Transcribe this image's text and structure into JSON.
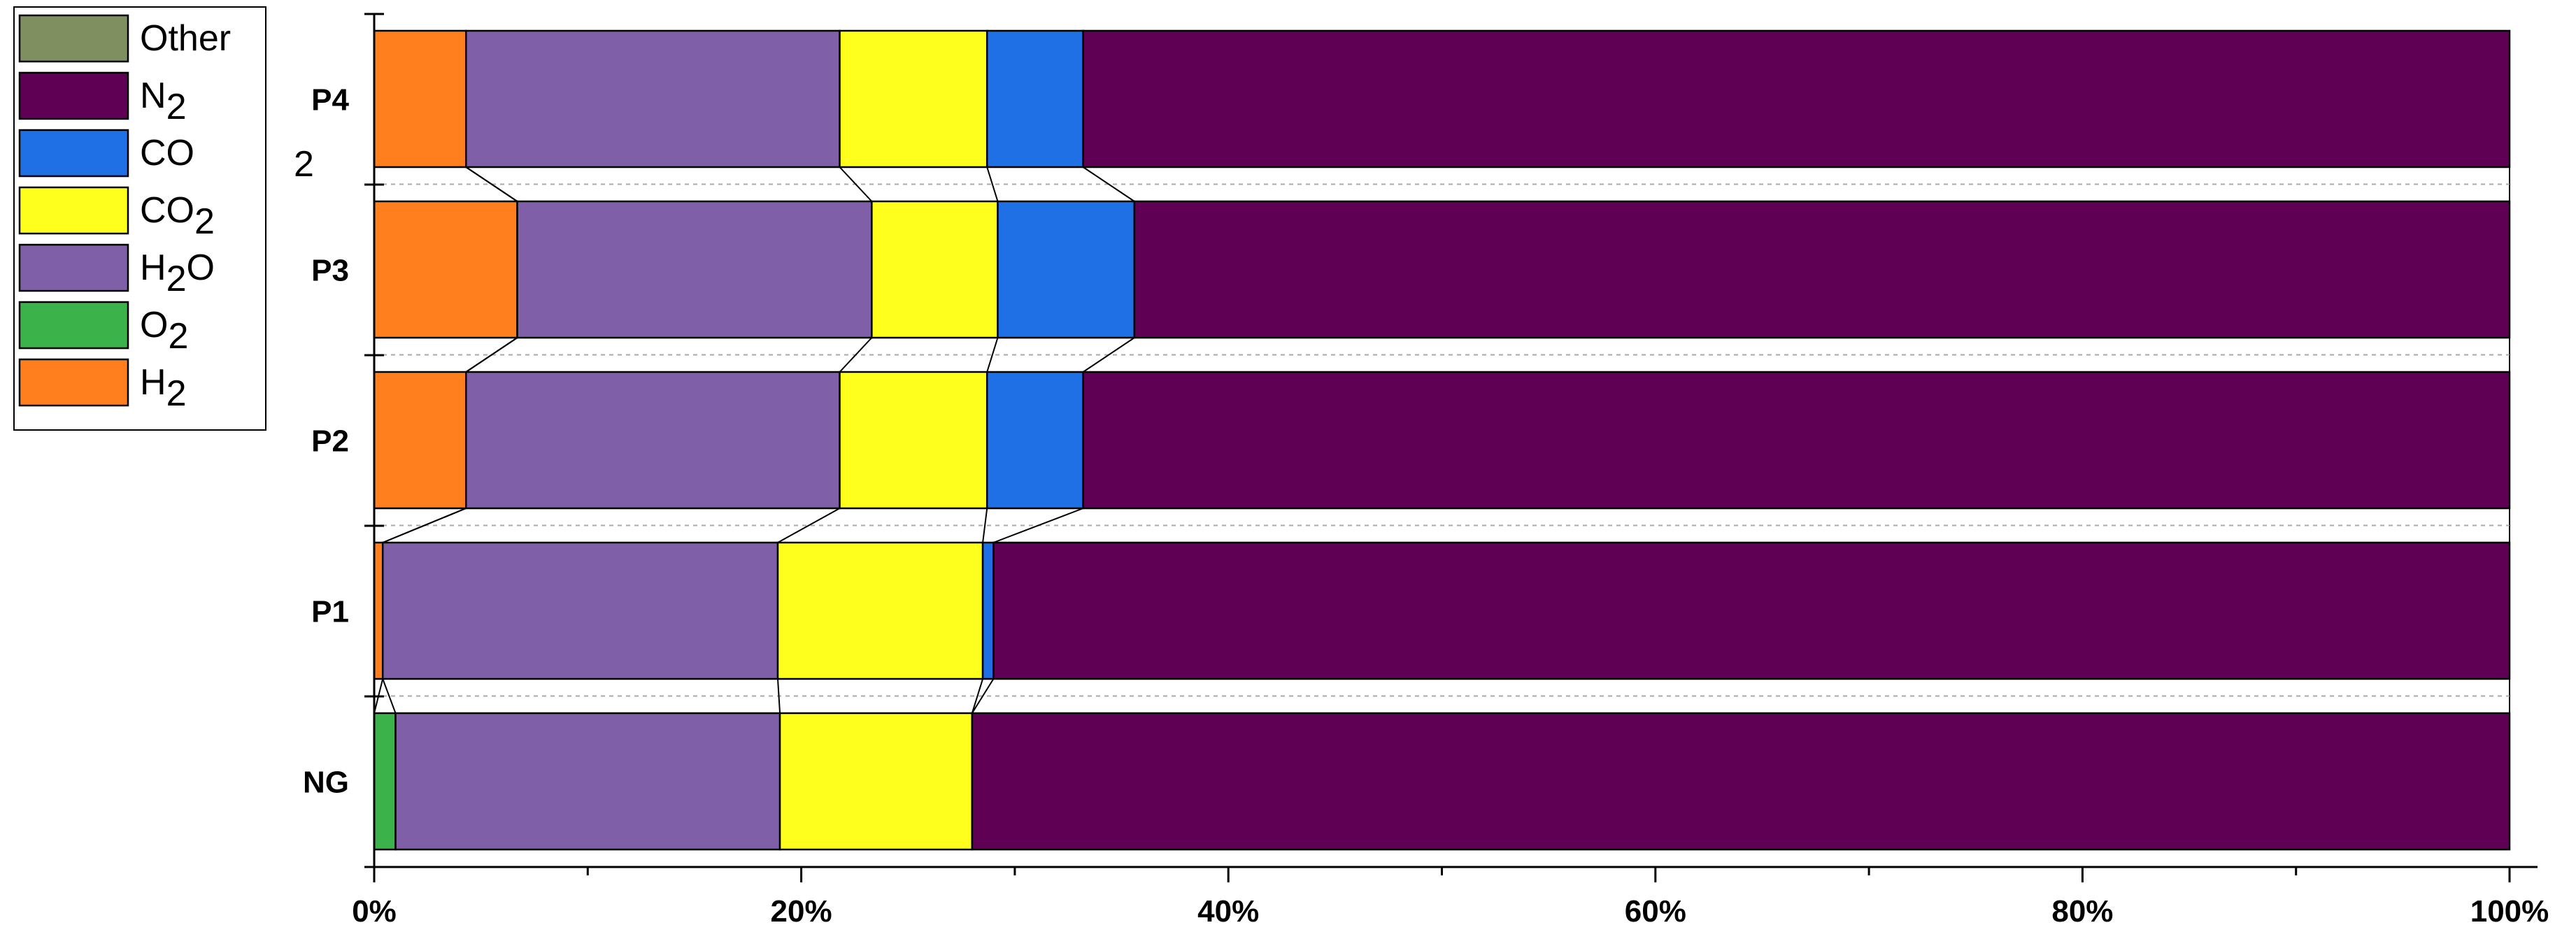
{
  "chart_data": {
    "type": "bar",
    "orientation": "horizontal",
    "stacked": "100%",
    "categories": [
      "NG",
      "P1",
      "P2",
      "P3",
      "P4"
    ],
    "series": [
      {
        "name": "H",
        "sub": "2",
        "color": "#FF7F1E",
        "values": [
          0,
          0.4,
          4.3,
          6.7,
          4.3
        ]
      },
      {
        "name": "O",
        "sub": "2",
        "color": "#3CB34A",
        "values": [
          1.0,
          0,
          0,
          0,
          0
        ]
      },
      {
        "name": "H",
        "sub": "2",
        "suffix": "O",
        "color": "#7F5FA8",
        "values": [
          18.0,
          18.5,
          17.5,
          16.6,
          17.5
        ]
      },
      {
        "name": "CO",
        "sub": "2",
        "color": "#FFFF1E",
        "values": [
          9.0,
          9.6,
          6.9,
          5.9,
          6.9
        ]
      },
      {
        "name": "CO",
        "color": "#1F6FE5",
        "values": [
          0,
          0.5,
          4.5,
          6.4,
          4.5
        ]
      },
      {
        "name": "N",
        "sub": "2",
        "color": "#5F0055",
        "values": [
          72.0,
          71.0,
          66.8,
          64.4,
          66.8
        ]
      },
      {
        "name": "Other",
        "color": "#7F8F5F",
        "values": [
          0,
          0,
          0,
          0,
          0
        ]
      }
    ],
    "x_ticks": [
      "0%",
      "20%",
      "40%",
      "60%",
      "80%",
      "100%"
    ],
    "xlim": [
      0,
      100
    ],
    "legend_position": "top-left",
    "legend_stray_text": "2"
  }
}
